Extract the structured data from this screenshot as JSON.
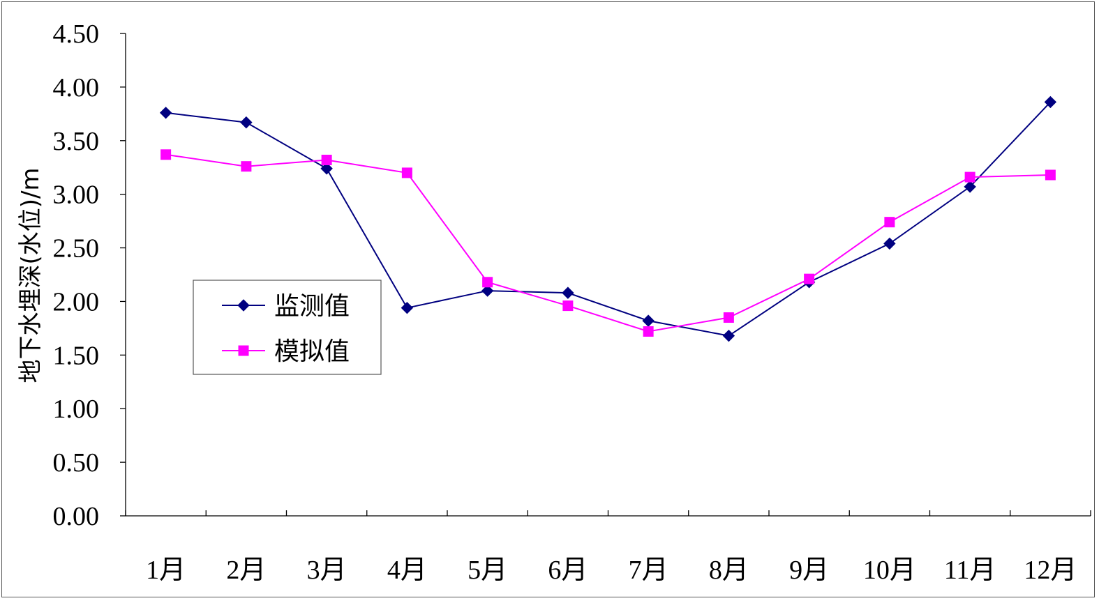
{
  "chart_data": {
    "type": "line",
    "title": "",
    "xlabel": "",
    "ylabel": "地下水埋深(水位)/m",
    "categories": [
      "1月",
      "2月",
      "3月",
      "4月",
      "5月",
      "6月",
      "7月",
      "8月",
      "9月",
      "10月",
      "11月",
      "12月"
    ],
    "series": [
      {
        "name": "监测值",
        "color": "#000080",
        "marker": "diamond",
        "values": [
          3.76,
          3.67,
          3.24,
          1.94,
          2.1,
          2.08,
          1.82,
          1.68,
          2.18,
          2.54,
          3.07,
          3.86
        ]
      },
      {
        "name": "模拟值",
        "color": "#FF00FF",
        "marker": "square",
        "values": [
          3.37,
          3.26,
          3.32,
          3.2,
          2.18,
          1.96,
          1.72,
          1.85,
          2.21,
          2.74,
          3.16,
          3.18
        ]
      }
    ],
    "ylim": [
      0,
      4.5
    ],
    "yticks": [
      "0.00",
      "0.50",
      "1.00",
      "1.50",
      "2.00",
      "2.50",
      "3.00",
      "3.50",
      "4.00",
      "4.50"
    ],
    "grid": false,
    "legend_position": "inside-left"
  }
}
